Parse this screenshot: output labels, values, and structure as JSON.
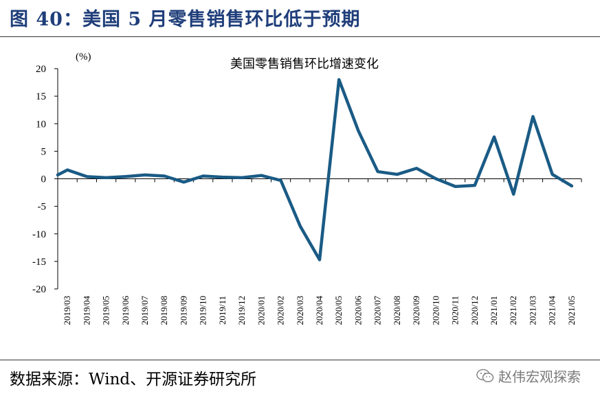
{
  "figure": {
    "title": "图 40：美国 5 月零售销售环比低于预期",
    "source": "数据来源：Wind、开源证券研究所",
    "watermark": "赵伟宏观探索",
    "watermark_icon": "wechat-icon"
  },
  "chart_data": {
    "type": "line",
    "title": "美国零售销售环比增速变化",
    "unit_label": "(%)",
    "xlabel": "",
    "ylabel": "",
    "ylim": [
      -20,
      20
    ],
    "yticks": [
      20,
      15,
      10,
      5,
      0,
      -5,
      -10,
      -15,
      -20
    ],
    "line_color": "#1a5b85",
    "categories": [
      "2019/03",
      "2019/04",
      "2019/05",
      "2019/06",
      "2019/07",
      "2019/08",
      "2019/09",
      "2019/10",
      "2019/11",
      "2019/12",
      "2020/01",
      "2020/02",
      "2020/03",
      "2020/04",
      "2020/05",
      "2020/06",
      "2020/07",
      "2020/08",
      "2020/09",
      "2020/10",
      "2020/11",
      "2020/12",
      "2021/01",
      "2021/02",
      "2021/03",
      "2021/04",
      "2021/05"
    ],
    "series": [
      {
        "values": [
          1.6,
          0.4,
          0.2,
          0.4,
          0.7,
          0.5,
          -0.6,
          0.5,
          0.3,
          0.2,
          0.6,
          -0.3,
          -8.6,
          -14.7,
          18.0,
          8.7,
          1.3,
          0.8,
          1.9,
          0.0,
          -1.4,
          -1.2,
          7.6,
          -2.8,
          11.3,
          0.8,
          -1.3
        ]
      }
    ],
    "grid": false
  }
}
